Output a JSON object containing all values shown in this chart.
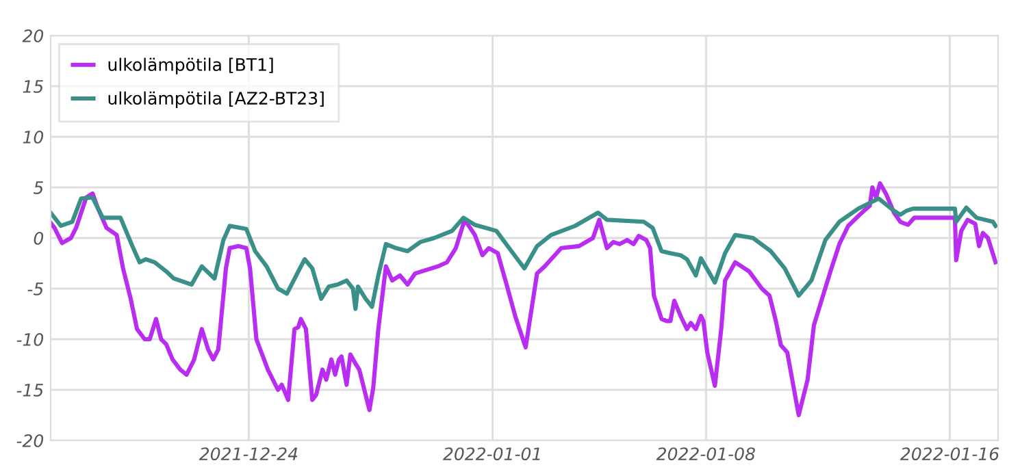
{
  "chart_data": {
    "type": "line",
    "xlim": [
      "2021-12-17T12:00",
      "2022-01-17T14:00"
    ],
    "xticks": [
      "2021-12-24",
      "2022-01-01",
      "2022-01-08",
      "2022-01-16"
    ],
    "ylim": [
      -20,
      20
    ],
    "yticks": [
      -20,
      -15,
      -10,
      -5,
      0,
      5,
      10,
      15,
      20
    ],
    "grid": true,
    "legend": "top left",
    "marker": "none",
    "line_style": "solid",
    "series": [
      {
        "name": "ulkolämpötila [BT1]",
        "color": "#b92cf2",
        "x": [
          "2021-12-17T12:00",
          "2021-12-17T15:00",
          "2021-12-17T21:00",
          "2021-12-18T04:00",
          "2021-12-18T08:00",
          "2021-12-18T12:00",
          "2021-12-18T16:00",
          "2021-12-18T21:00",
          "2021-12-19T01:00",
          "2021-12-19T08:00",
          "2021-12-19T16:00",
          "2021-12-19T21:00",
          "2021-12-20T03:00",
          "2021-12-20T08:00",
          "2021-12-20T14:00",
          "2021-12-20T18:00",
          "2021-12-20T23:00",
          "2021-12-21T03:00",
          "2021-12-21T07:00",
          "2021-12-21T12:00",
          "2021-12-21T18:00",
          "2021-12-21T23:00",
          "2021-12-22T05:00",
          "2021-12-22T11:00",
          "2021-12-22T16:00",
          "2021-12-22T20:00",
          "2021-12-23T00:00",
          "2021-12-23T06:00",
          "2021-12-23T09:00",
          "2021-12-23T16:00",
          "2021-12-23T22:00",
          "2021-12-24T01:00",
          "2021-12-24T06:00",
          "2021-12-24T15:00",
          "2021-12-24T23:00",
          "2021-12-25T02:00",
          "2021-12-25T07:00",
          "2021-12-25T12:00",
          "2021-12-25T15:00",
          "2021-12-25T17:00",
          "2021-12-25T21:00",
          "2021-12-26T02:00",
          "2021-12-26T05:00",
          "2021-12-26T10:00",
          "2021-12-26T13:00",
          "2021-12-26T17:00",
          "2021-12-26T20:00",
          "2021-12-26T23:00",
          "2021-12-27T01:00",
          "2021-12-27T05:00",
          "2021-12-27T08:00",
          "2021-12-27T12:00",
          "2021-12-27T15:00",
          "2021-12-27T23:00",
          "2021-12-28T02:00",
          "2021-12-28T06:00",
          "2021-12-28T12:00",
          "2021-12-28T17:00",
          "2021-12-28T23:00",
          "2021-12-29T05:00",
          "2021-12-29T11:00",
          "2021-12-30T05:00",
          "2021-12-30T12:00",
          "2021-12-30T19:00",
          "2021-12-31T02:00",
          "2021-12-31T10:00",
          "2021-12-31T16:00",
          "2021-12-31T21:00",
          "2022-01-01T04:00",
          "2022-01-01T11:00",
          "2022-01-01T18:00",
          "2022-01-02T02:00",
          "2022-01-02T11:00",
          "2022-01-02T17:00",
          "2022-01-03T06:00",
          "2022-01-03T20:00",
          "2022-01-04T07:00",
          "2022-01-04T12:00",
          "2022-01-04T18:00",
          "2022-01-04T23:00",
          "2022-01-05T04:00",
          "2022-01-05T10:00",
          "2022-01-05T15:00",
          "2022-01-05T19:00",
          "2022-01-06T01:00",
          "2022-01-06T04:00",
          "2022-01-06T07:00",
          "2022-01-06T13:00",
          "2022-01-06T17:00",
          "2022-01-06T20:00",
          "2022-01-06T23:00",
          "2022-01-07T04:00",
          "2022-01-07T09:00",
          "2022-01-07T12:00",
          "2022-01-07T16:00",
          "2022-01-07T20:00",
          "2022-01-07T22:00",
          "2022-01-08T01:00",
          "2022-01-08T07:00",
          "2022-01-08T12:00",
          "2022-01-08T15:00",
          "2022-01-08T23:00",
          "2022-01-09T10:00",
          "2022-01-09T20:00",
          "2022-01-10T02:00",
          "2022-01-10T07:00",
          "2022-01-10T11:00",
          "2022-01-10T16:00",
          "2022-01-11T01:00",
          "2022-01-11T08:00",
          "2022-01-11T13:00",
          "2022-01-12T02:00",
          "2022-01-12T09:00",
          "2022-01-12T16:00",
          "2022-01-13T01:00",
          "2022-01-13T09:00",
          "2022-01-13T11:00",
          "2022-01-13T14:00",
          "2022-01-13T17:00",
          "2022-01-13T22:00",
          "2022-01-14T04:00",
          "2022-01-14T09:00",
          "2022-01-14T15:00",
          "2022-01-14T20:00",
          "2022-01-16T04:00",
          "2022-01-16T05:00",
          "2022-01-16T09:00",
          "2022-01-16T14:00",
          "2022-01-16T20:00",
          "2022-01-16T23:00",
          "2022-01-17T02:00",
          "2022-01-17T06:00",
          "2022-01-17T12:00"
        ],
        "values": [
          1.5,
          1,
          -0.5,
          0,
          1,
          2.5,
          4,
          4.4,
          3,
          1,
          0.3,
          -3,
          -6,
          -9,
          -10,
          -10,
          -8,
          -10,
          -10.5,
          -12,
          -13,
          -13.5,
          -12,
          -9,
          -11,
          -12,
          -11,
          -3,
          -1,
          -0.8,
          -1,
          -3,
          -10,
          -13,
          -15,
          -14.5,
          -16,
          -9,
          -8.8,
          -8,
          -9,
          -16,
          -15.5,
          -13,
          -14,
          -12,
          -13.5,
          -12,
          -11.7,
          -14.5,
          -11.5,
          -12.4,
          -13,
          -17,
          -14.8,
          -9,
          -2.8,
          -4.2,
          -3.7,
          -4.6,
          -3.5,
          -2.8,
          -2.4,
          -1,
          1.8,
          0.3,
          -1.7,
          -1,
          -1.5,
          -4.6,
          -7.8,
          -10.8,
          -3.5,
          -2.8,
          -1,
          -0.8,
          0,
          1.8,
          -1,
          -0.4,
          -0.6,
          -0.2,
          -0.6,
          0.2,
          -0.2,
          -1,
          -5.7,
          -8,
          -8.2,
          -8.2,
          -6.2,
          -7.7,
          -9,
          -8.4,
          -9,
          -7.7,
          -8.2,
          -11.3,
          -14.6,
          -9,
          -4.2,
          -2.4,
          -3.3,
          -5,
          -5.7,
          -8.2,
          -10.6,
          -11.3,
          -17.5,
          -14,
          -8.6,
          -3.3,
          -0.6,
          1.2,
          2.3,
          3.2,
          5,
          4,
          5.4,
          4.3,
          2.5,
          1.6,
          1.3,
          2,
          2,
          -2.2,
          0.7,
          1.8,
          1.4,
          -0.8,
          0.5,
          0,
          -2.4
        ]
      },
      {
        "name": "ulkolämpötila [AZ2-BT23]",
        "color": "#3a9088",
        "x": [
          "2021-12-17T12:00",
          "2021-12-17T20:00",
          "2021-12-18T05:00",
          "2021-12-18T12:00",
          "2021-12-18T21:00",
          "2021-12-19T05:00",
          "2021-12-19T19:00",
          "2021-12-20T04:00",
          "2021-12-20T10:00",
          "2021-12-20T15:00",
          "2021-12-20T22:00",
          "2021-12-21T07:00",
          "2021-12-21T13:00",
          "2021-12-22T03:00",
          "2021-12-22T11:00",
          "2021-12-22T21:00",
          "2021-12-23T04:00",
          "2021-12-23T09:00",
          "2021-12-23T22:00",
          "2021-12-24T05:00",
          "2021-12-24T14:00",
          "2021-12-24T23:00",
          "2021-12-25T06:00",
          "2021-12-25T15:00",
          "2021-12-25T20:00",
          "2021-12-26T02:00",
          "2021-12-26T09:00",
          "2021-12-26T15:00",
          "2021-12-26T22:00",
          "2021-12-27T05:00",
          "2021-12-27T10:00",
          "2021-12-27T12:00",
          "2021-12-27T14:00",
          "2021-12-27T20:00",
          "2021-12-28T01:00",
          "2021-12-28T06:00",
          "2021-12-28T12:00",
          "2021-12-28T20:00",
          "2021-12-29T05:00",
          "2021-12-29T15:00",
          "2021-12-30T02:00",
          "2021-12-30T16:00",
          "2021-12-31T01:00",
          "2021-12-31T10:00",
          "2022-01-01T03:00",
          "2022-01-01T13:00",
          "2022-01-02T01:00",
          "2022-01-02T11:00",
          "2022-01-02T22:00",
          "2022-01-03T17:00",
          "2022-01-04T11:00",
          "2022-01-04T18:00",
          "2022-01-05T23:00",
          "2022-01-06T06:00",
          "2022-01-06T13:00",
          "2022-01-06T20:00",
          "2022-01-07T04:00",
          "2022-01-07T09:00",
          "2022-01-07T16:00",
          "2022-01-07T20:00",
          "2022-01-08T07:00",
          "2022-01-08T15:00",
          "2022-01-08T23:00",
          "2022-01-09T13:00",
          "2022-01-10T03:00",
          "2022-01-10T14:00",
          "2022-01-11T01:00",
          "2022-01-11T11:00",
          "2022-01-11T22:00",
          "2022-01-12T09:00",
          "2022-01-13T00:00",
          "2022-01-13T16:00",
          "2022-01-14T04:00",
          "2022-01-14T09:00",
          "2022-01-14T14:00",
          "2022-01-14T19:00",
          "2022-01-16T04:00",
          "2022-01-16T05:00",
          "2022-01-16T13:00",
          "2022-01-16T21:00",
          "2022-01-17T10:00",
          "2022-01-17T12:00"
        ],
        "values": [
          2.5,
          1.2,
          1.6,
          3.9,
          4,
          2,
          2,
          -0.7,
          -2.4,
          -2.1,
          -2.4,
          -3.3,
          -4,
          -4.6,
          -2.8,
          -4,
          -0.2,
          1.2,
          0.9,
          -1.3,
          -2.8,
          -5,
          -5.5,
          -3.3,
          -2.1,
          -3,
          -6,
          -4.8,
          -4.6,
          -4.2,
          -5,
          -7,
          -4.8,
          -6,
          -6.8,
          -3.7,
          -0.6,
          -1,
          -1.3,
          -0.4,
          0,
          0.7,
          2,
          1.3,
          0.7,
          -1,
          -3,
          -0.8,
          0.3,
          1.2,
          2.5,
          1.8,
          1.6,
          1,
          -1.3,
          -1.5,
          -1.7,
          -2.1,
          -3.7,
          -2,
          -4.4,
          -1.5,
          0.3,
          0,
          -1.3,
          -3,
          -5.7,
          -4.2,
          -0.2,
          1.6,
          2.9,
          3.9,
          2.7,
          2.3,
          2.7,
          2.9,
          2.9,
          1.6,
          3,
          2,
          1.6,
          1.2
        ]
      }
    ]
  }
}
